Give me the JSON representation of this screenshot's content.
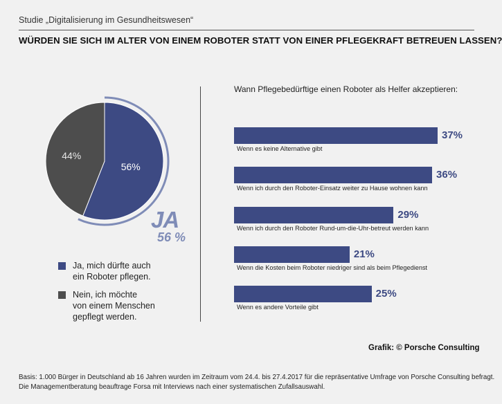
{
  "header": {
    "study": "Studie „Digitalisierung im Gesundheitswesen“",
    "question": "WÜRDEN SIE SICH IM ALTER VON EINEM ROBOTER STATT VON EINER PFLEGEKRAFT BETREUEN LASSEN?"
  },
  "colors": {
    "yes": "#3d4a83",
    "no": "#4d4d4d",
    "accent_light": "#7f8cb7",
    "background": "#f1f1f1"
  },
  "highlight": {
    "word": "JA",
    "percent": "56 %"
  },
  "legend": [
    {
      "text_line1": "Ja, mich dürfte auch",
      "text_line2": "ein Roboter pflegen.",
      "line3": ""
    },
    {
      "text_line1": "Nein, ich möchte",
      "text_line2": "von einem Menschen",
      "line3": "gepflegt werden."
    }
  ],
  "credit": "Grafik: © Porsche Consulting",
  "footnote": {
    "line1": "Basis: 1.000 Bürger in Deutschland ab 16 Jahren wurden im Zeitraum vom 24.4. bis 27.4.2017 für die repräsentative Umfrage von Porsche Consulting befragt.",
    "line2": "Die Managementberatung beauftrage Forsa mit Interviews nach einer systematischen Zufallsauswahl."
  },
  "chart_data": [
    {
      "type": "pie",
      "title": "",
      "slices": [
        {
          "label": "Ja, mich dürfte auch ein Roboter pflegen.",
          "value": 56,
          "value_label": "56%"
        },
        {
          "label": "Nein, ich möchte von einem Menschen gepflegt werden.",
          "value": 44,
          "value_label": "44%"
        }
      ]
    },
    {
      "type": "bar",
      "orientation": "horizontal",
      "title": "Wann Pflegebedürftige einen Roboter als Helfer akzeptieren:",
      "xlabel": "",
      "ylabel": "",
      "xlim": [
        0,
        37
      ],
      "categories": [
        "Wenn es keine Alternative gibt",
        "Wenn ich durch den Roboter-Einsatz weiter zu Hause wohnen kann",
        "Wenn ich durch den Roboter Rund-um-die-Uhr-betreut werden kann",
        "Wenn die Kosten beim Roboter niedriger sind als beim Pflegedienst",
        "Wenn es andere Vorteile gibt"
      ],
      "values": [
        37,
        36,
        29,
        21,
        25
      ],
      "value_labels": [
        "37%",
        "36%",
        "29%",
        "21%",
        "25%"
      ]
    }
  ]
}
